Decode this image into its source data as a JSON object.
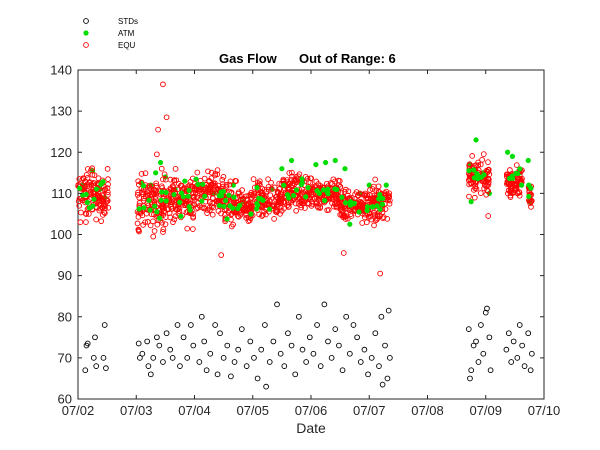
{
  "chart_data": {
    "type": "scatter",
    "title": "Gas Flow",
    "subtitle": "Out of Range: 6",
    "xlabel": "Date",
    "ylabel": "",
    "xlim": [
      "07/02",
      "07/10"
    ],
    "ylim": [
      60,
      140
    ],
    "x_ticks": [
      "07/02",
      "07/03",
      "07/04",
      "07/05",
      "07/06",
      "07/07",
      "07/08",
      "07/09",
      "07/10"
    ],
    "y_ticks": [
      60,
      70,
      80,
      90,
      100,
      110,
      120,
      130,
      140
    ],
    "grid": false,
    "legend_position": "top-left",
    "series": [
      {
        "name": "STDs",
        "marker": "open-circle",
        "color": "#000000",
        "points": [
          [
            "07/02 03:00",
            67
          ],
          [
            "07/02 03:30",
            73
          ],
          [
            "07/02 04:00",
            73.5
          ],
          [
            "07/02 06:30",
            70
          ],
          [
            "07/02 07:00",
            75
          ],
          [
            "07/02 07:30",
            68
          ],
          [
            "07/02 10:30",
            70
          ],
          [
            "07/02 11:00",
            78
          ],
          [
            "07/02 11:30",
            67.5
          ],
          [
            "07/03 01:00",
            73.5
          ],
          [
            "07/03 01:30",
            70
          ],
          [
            "07/03 02:30",
            71
          ],
          [
            "07/03 04:30",
            74
          ],
          [
            "07/03 05:00",
            68
          ],
          [
            "07/03 06:00",
            66
          ],
          [
            "07/03 07:00",
            70
          ],
          [
            "07/03 08:30",
            75
          ],
          [
            "07/03 09:30",
            73
          ],
          [
            "07/03 11:00",
            69
          ],
          [
            "07/03 12:30",
            76
          ],
          [
            "07/03 14:00",
            72
          ],
          [
            "07/03 15:00",
            70
          ],
          [
            "07/03 17:00",
            78
          ],
          [
            "07/03 18:00",
            68
          ],
          [
            "07/03 19:30",
            75
          ],
          [
            "07/03 21:00",
            70
          ],
          [
            "07/03 22:30",
            78
          ],
          [
            "07/03 23:30",
            73
          ],
          [
            "07/04 02:00",
            69
          ],
          [
            "07/04 03:00",
            80
          ],
          [
            "07/04 04:00",
            74
          ],
          [
            "07/04 05:00",
            67
          ],
          [
            "07/04 06:30",
            71
          ],
          [
            "07/04 08:30",
            78
          ],
          [
            "07/04 09:30",
            66
          ],
          [
            "07/04 10:30",
            76
          ],
          [
            "07/04 12:00",
            70
          ],
          [
            "07/04 13:30",
            73
          ],
          [
            "07/04 15:00",
            65.5
          ],
          [
            "07/04 16:30",
            69
          ],
          [
            "07/04 18:00",
            72
          ],
          [
            "07/04 19:30",
            77
          ],
          [
            "07/04 21:30",
            68
          ],
          [
            "07/04 23:00",
            74
          ],
          [
            "07/05 00:30",
            70
          ],
          [
            "07/05 02:00",
            65
          ],
          [
            "07/05 03:30",
            72
          ],
          [
            "07/05 05:00",
            78
          ],
          [
            "07/05 05:30",
            63
          ],
          [
            "07/05 07:00",
            69
          ],
          [
            "07/05 08:30",
            74
          ],
          [
            "07/05 10:00",
            83
          ],
          [
            "07/05 11:30",
            71
          ],
          [
            "07/05 13:00",
            68
          ],
          [
            "07/05 14:30",
            76
          ],
          [
            "07/05 16:00",
            73
          ],
          [
            "07/05 17:30",
            66
          ],
          [
            "07/05 19:00",
            80
          ],
          [
            "07/05 20:30",
            72
          ],
          [
            "07/05 22:00",
            69
          ],
          [
            "07/05 23:30",
            75
          ],
          [
            "07/06 01:00",
            71
          ],
          [
            "07/06 02:30",
            78
          ],
          [
            "07/06 04:00",
            68
          ],
          [
            "07/06 05:30",
            83
          ],
          [
            "07/06 07:00",
            74
          ],
          [
            "07/06 08:30",
            70
          ],
          [
            "07/06 10:00",
            77
          ],
          [
            "07/06 11:30",
            73
          ],
          [
            "07/06 13:00",
            67
          ],
          [
            "07/06 14:30",
            80
          ],
          [
            "07/06 16:00",
            71
          ],
          [
            "07/06 17:30",
            78
          ],
          [
            "07/06 19:00",
            75
          ],
          [
            "07/06 20:30",
            69
          ],
          [
            "07/06 22:00",
            72
          ],
          [
            "07/06 23:30",
            66
          ],
          [
            "07/07 01:00",
            70
          ],
          [
            "07/07 02:30",
            76
          ],
          [
            "07/07 04:00",
            68
          ],
          [
            "07/07 05:00",
            80
          ],
          [
            "07/07 05:30",
            63.5
          ],
          [
            "07/07 06:30",
            73
          ],
          [
            "07/07 07:30",
            65
          ],
          [
            "07/07 08:00",
            81.5
          ],
          [
            "07/07 08:30",
            70
          ],
          [
            "07/08 17:00",
            77
          ],
          [
            "07/08 17:30",
            65
          ],
          [
            "07/08 18:00",
            67
          ],
          [
            "07/08 19:00",
            73
          ],
          [
            "07/08 20:00",
            74
          ],
          [
            "07/08 21:00",
            69
          ],
          [
            "07/08 22:00",
            78
          ],
          [
            "07/08 23:00",
            71
          ],
          [
            "07/09 00:00",
            81
          ],
          [
            "07/09 00:30",
            82
          ],
          [
            "07/09 01:30",
            75
          ],
          [
            "07/09 02:00",
            67
          ],
          [
            "07/09 08:30",
            72
          ],
          [
            "07/09 09:30",
            76
          ],
          [
            "07/09 10:30",
            69
          ],
          [
            "07/09 11:30",
            74
          ],
          [
            "07/09 13:00",
            70
          ],
          [
            "07/09 14:00",
            78
          ],
          [
            "07/09 15:00",
            73
          ],
          [
            "07/09 16:00",
            68
          ],
          [
            "07/09 17:30",
            76
          ],
          [
            "07/09 18:30",
            67
          ],
          [
            "07/09 19:00",
            71
          ]
        ]
      },
      {
        "name": "ATM",
        "marker": "filled-circle",
        "color": "#00dd00",
        "points": [
          [
            "07/02 06:00",
            115.5
          ],
          [
            "07/02 02:00",
            112
          ],
          [
            "07/02 09:00",
            111
          ],
          [
            "07/02 11:00",
            109
          ],
          [
            "07/03 02:00",
            112.5
          ],
          [
            "07/03 06:00",
            112
          ],
          [
            "07/03 08:00",
            115
          ],
          [
            "07/03 10:00",
            117.5
          ],
          [
            "07/03 12:00",
            114
          ],
          [
            "07/03 16:00",
            111
          ],
          [
            "07/03 20:00",
            113
          ],
          [
            "07/04 02:00",
            112
          ],
          [
            "07/04 08:00",
            110
          ],
          [
            "07/04 12:00",
            109.5
          ],
          [
            "07/04 16:00",
            112
          ],
          [
            "07/04 20:00",
            108
          ],
          [
            "07/05 04:00",
            109
          ],
          [
            "07/05 08:00",
            111
          ],
          [
            "07/05 12:00",
            116
          ],
          [
            "07/05 16:00",
            118
          ],
          [
            "07/05 20:00",
            113
          ],
          [
            "07/06 02:00",
            117
          ],
          [
            "07/06 06:00",
            117.5
          ],
          [
            "07/06 10:00",
            118
          ],
          [
            "07/06 14:00",
            116
          ],
          [
            "07/06 16:00",
            102.5
          ],
          [
            "07/06 20:00",
            110
          ],
          [
            "07/07 00:00",
            112
          ],
          [
            "07/07 04:00",
            108
          ],
          [
            "07/07 07:00",
            112
          ],
          [
            "07/08 17:30",
            117
          ],
          [
            "07/08 18:00",
            108
          ],
          [
            "07/08 20:00",
            123
          ],
          [
            "07/08 23:00",
            115
          ],
          [
            "07/09 01:30",
            110
          ],
          [
            "07/09 09:00",
            120
          ],
          [
            "07/09 11:00",
            119
          ],
          [
            "07/09 14:00",
            115
          ],
          [
            "07/09 17:30",
            118
          ],
          [
            "07/09 18:00",
            108
          ]
        ]
      },
      {
        "name": "EQU",
        "marker": "open-circle",
        "color": "#ff0000",
        "clusters": [
          {
            "start": "07/02 00:00",
            "end": "07/02 12:30",
            "mean": 109.5,
            "spread": 3.5,
            "count": 130
          },
          {
            "start": "07/03 00:30",
            "end": "07/03 12:00",
            "mean": 108,
            "spread": 4,
            "count": 120
          },
          {
            "start": "07/03 12:00",
            "end": "07/04 00:00",
            "mean": 108.5,
            "spread": 3.5,
            "count": 130
          },
          {
            "start": "07/04 00:00",
            "end": "07/04 12:00",
            "mean": 110,
            "spread": 3,
            "count": 120
          },
          {
            "start": "07/04 12:00",
            "end": "07/05 00:00",
            "mean": 107,
            "spread": 3,
            "count": 120
          },
          {
            "start": "07/05 00:00",
            "end": "07/05 12:00",
            "mean": 108.5,
            "spread": 2.5,
            "count": 110
          },
          {
            "start": "07/05 12:00",
            "end": "07/06 00:00",
            "mean": 110.5,
            "spread": 2.5,
            "count": 120
          },
          {
            "start": "07/06 00:00",
            "end": "07/06 12:00",
            "mean": 110,
            "spread": 2.5,
            "count": 120
          },
          {
            "start": "07/06 12:00",
            "end": "07/07 00:00",
            "mean": 107,
            "spread": 2.5,
            "count": 120
          },
          {
            "start": "07/07 00:00",
            "end": "07/07 08:30",
            "mean": 107.5,
            "spread": 2.5,
            "count": 90
          },
          {
            "start": "07/08 17:00",
            "end": "07/09 01:30",
            "mean": 114,
            "spread": 2.5,
            "count": 100
          },
          {
            "start": "07/09 08:30",
            "end": "07/09 15:00",
            "mean": 113,
            "spread": 2,
            "count": 80
          },
          {
            "start": "07/09 17:30",
            "end": "07/09 19:00",
            "mean": 110.5,
            "spread": 2,
            "count": 20
          }
        ],
        "outliers": [
          [
            "07/03 11:00",
            136.5
          ],
          [
            "07/03 09:00",
            125.5
          ],
          [
            "07/03 12:30",
            128.5
          ],
          [
            "07/03 08:30",
            119.5
          ],
          [
            "07/03 10:30",
            116
          ],
          [
            "07/04 11:00",
            95
          ],
          [
            "07/06 13:30",
            95.5
          ],
          [
            "07/07 04:30",
            90.5
          ],
          [
            "07/09 01:00",
            104.5
          ],
          [
            "07/03 01:00",
            101
          ],
          [
            "07/03 07:00",
            99.5
          ],
          [
            "07/02 01:00",
            103
          ]
        ]
      }
    ]
  }
}
